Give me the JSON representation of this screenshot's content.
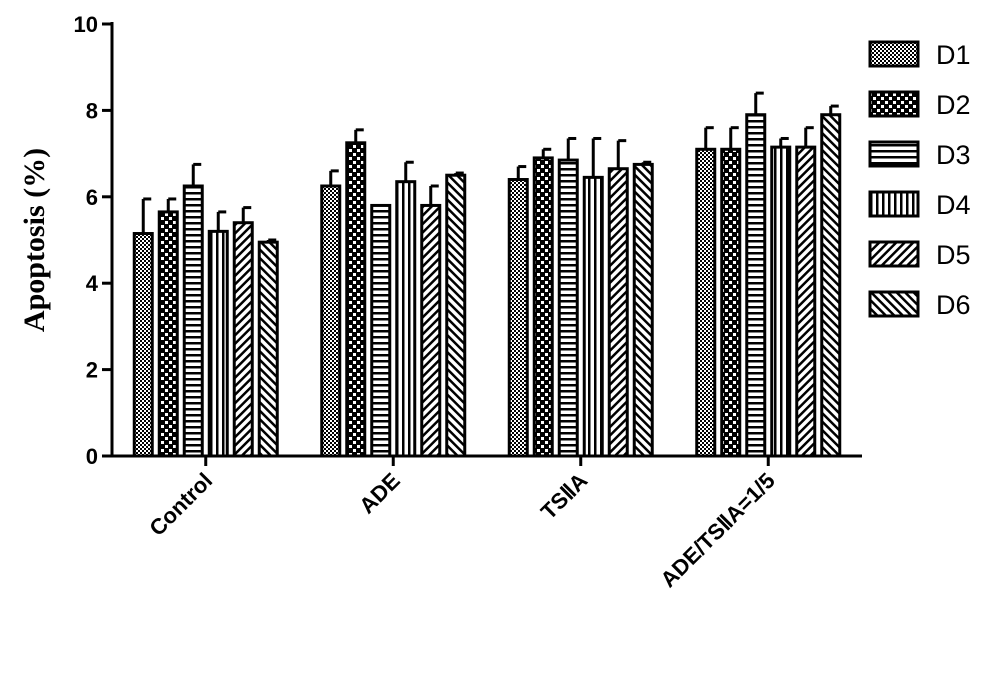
{
  "chart_data": {
    "type": "bar",
    "title": "",
    "xlabel": "",
    "ylabel": "Apoptosis (%)",
    "ylim": [
      0,
      10
    ],
    "yticks": [
      "0",
      "2",
      "4",
      "6",
      "8",
      "10"
    ],
    "categories": [
      "Control",
      "ADE",
      "TSⅡA",
      "ADE/TSⅡA=1/5"
    ],
    "legend_position": "top-right",
    "grid": false,
    "series": [
      {
        "name": "D1",
        "pattern": "checker",
        "values": [
          5.15,
          6.25,
          6.4,
          7.1
        ],
        "errors": [
          0.8,
          0.35,
          0.3,
          0.5
        ]
      },
      {
        "name": "D2",
        "pattern": "large-checker",
        "values": [
          5.65,
          7.25,
          6.9,
          7.1
        ],
        "errors": [
          0.3,
          0.3,
          0.2,
          0.5
        ]
      },
      {
        "name": "D3",
        "pattern": "horizontal-lines",
        "values": [
          6.25,
          5.8,
          6.85,
          7.9
        ],
        "errors": [
          0.5,
          0.0,
          0.5,
          0.5
        ]
      },
      {
        "name": "D4",
        "pattern": "vertical-lines",
        "values": [
          5.2,
          6.35,
          6.45,
          7.15
        ],
        "errors": [
          0.45,
          0.45,
          0.9,
          0.2
        ]
      },
      {
        "name": "D5",
        "pattern": "diagonal-up",
        "values": [
          5.4,
          5.8,
          6.65,
          7.15
        ],
        "errors": [
          0.35,
          0.45,
          0.65,
          0.45
        ]
      },
      {
        "name": "D6",
        "pattern": "diagonal-down",
        "values": [
          4.95,
          6.5,
          6.75,
          7.9
        ],
        "errors": [
          0.05,
          0.05,
          0.05,
          0.2
        ]
      }
    ]
  }
}
